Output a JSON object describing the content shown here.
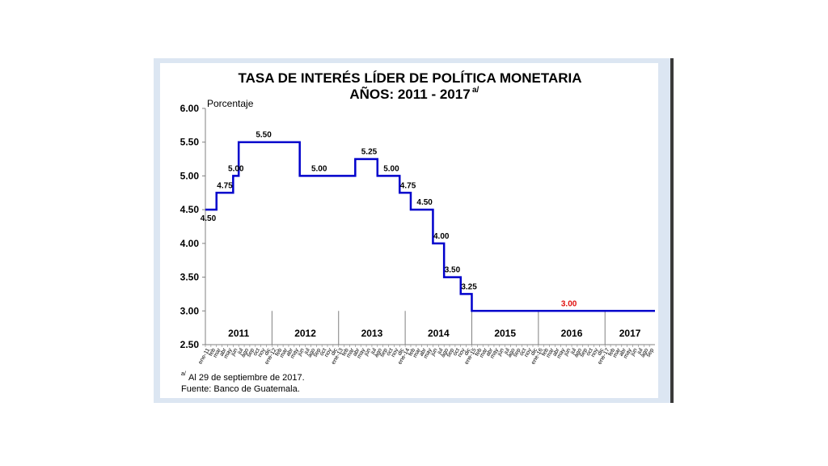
{
  "chart_data": {
    "type": "line",
    "title": "TASA DE INTERÉS LÍDER DE POLÍTICA MONETARIA",
    "subtitle": "AÑOS: 2011 - 2017",
    "subtitle_note": "a/",
    "ylabel": "Porcentaje",
    "ylim": [
      2.5,
      6.0
    ],
    "yticks": [
      "2.50",
      "3.00",
      "3.50",
      "4.00",
      "4.50",
      "5.00",
      "5.50",
      "6.00"
    ],
    "grid": false,
    "year_labels": [
      "2011",
      "2012",
      "2013",
      "2014",
      "2015",
      "2016",
      "2017"
    ],
    "months": [
      "ene",
      "feb",
      "mar",
      "abr",
      "may",
      "jun",
      "jul",
      "ago",
      "sep",
      "oct",
      "nov",
      "dic"
    ],
    "x_start": "ene-11",
    "x_end": "sep-17",
    "series": [
      {
        "color": "#0000cc",
        "steps": [
          {
            "from": "ene-11",
            "value": 4.5
          },
          {
            "from": "mar-11",
            "value": 4.75
          },
          {
            "from": "jun-11",
            "value": 5.0
          },
          {
            "from": "jul-11",
            "value": 5.5
          },
          {
            "from": "jun-12",
            "value": 5.0
          },
          {
            "from": "abr-13",
            "value": 5.25
          },
          {
            "from": "ago-13",
            "value": 5.0
          },
          {
            "from": "dic-13",
            "value": 4.75
          },
          {
            "from": "feb-14",
            "value": 4.5
          },
          {
            "from": "jun-14",
            "value": 4.0
          },
          {
            "from": "ago-14",
            "value": 3.5
          },
          {
            "from": "nov-14",
            "value": 3.25
          },
          {
            "from": "ene-15",
            "value": 3.0
          },
          {
            "from": "sep-17",
            "value": 3.0
          }
        ]
      }
    ],
    "data_labels": [
      {
        "at": "ene-11",
        "text": "4.50",
        "anchor": "below",
        "color": "#000000"
      },
      {
        "at": "abr-11",
        "text": "4.75",
        "anchor": "above",
        "color": "#000000"
      },
      {
        "at": "jun-11",
        "text": "5.00",
        "anchor": "above",
        "color": "#000000"
      },
      {
        "at": "nov-11",
        "text": "5.50",
        "anchor": "above",
        "color": "#000000"
      },
      {
        "at": "sep-12",
        "text": "5.00",
        "anchor": "above",
        "color": "#000000"
      },
      {
        "at": "jun-13",
        "text": "5.25",
        "anchor": "above",
        "color": "#000000"
      },
      {
        "at": "oct-13",
        "text": "5.00",
        "anchor": "above",
        "color": "#000000"
      },
      {
        "at": "ene-14",
        "text": "4.75",
        "anchor": "above",
        "color": "#000000"
      },
      {
        "at": "abr-14",
        "text": "4.50",
        "anchor": "above",
        "color": "#000000"
      },
      {
        "at": "jul-14",
        "text": "4.00",
        "anchor": "above",
        "color": "#000000"
      },
      {
        "at": "sep-14",
        "text": "3.50",
        "anchor": "above",
        "color": "#000000"
      },
      {
        "at": "dic-14",
        "text": "3.25",
        "anchor": "above",
        "color": "#000000"
      },
      {
        "at": "jun-16",
        "text": "3.00",
        "anchor": "above",
        "color": "#e01010"
      }
    ]
  },
  "footnote": "Al 29 de septiembre de 2017.",
  "footnote_mark": "a/",
  "source": "Fuente: Banco de Guatemala."
}
